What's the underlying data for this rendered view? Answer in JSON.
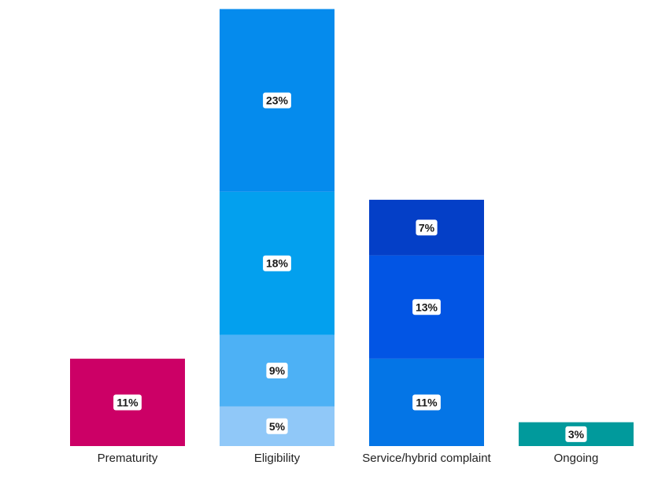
{
  "chart_data": {
    "type": "bar",
    "stacked": true,
    "categories": [
      "Prematurity",
      "Eligibility",
      "Service/hybrid complaint",
      "Ongoing"
    ],
    "bars": [
      {
        "category": "Prematurity",
        "segments": [
          {
            "value": 11,
            "label": "11%",
            "color": "#cc0066"
          }
        ]
      },
      {
        "category": "Eligibility",
        "segments": [
          {
            "value": 5,
            "label": "5%",
            "color": "#90c8f8"
          },
          {
            "value": 9,
            "label": "9%",
            "color": "#4db1f5"
          },
          {
            "value": 18,
            "label": "18%",
            "color": "#03a0ee"
          },
          {
            "value": 23,
            "label": "23%",
            "color": "#058bed"
          }
        ]
      },
      {
        "category": "Service/hybrid complaint",
        "segments": [
          {
            "value": 11,
            "label": "11%",
            "color": "#0475e6"
          },
          {
            "value": 13,
            "label": "13%",
            "color": "#0255e4"
          },
          {
            "value": 7,
            "label": "7%",
            "color": "#043fc7"
          }
        ]
      },
      {
        "category": "Ongoing",
        "segments": [
          {
            "value": 3,
            "label": "3%",
            "color": "#019a9c"
          }
        ]
      }
    ],
    "title": "",
    "xlabel": "",
    "ylabel": "",
    "ylim": [
      0,
      55
    ],
    "grid": false,
    "legend": "none"
  }
}
